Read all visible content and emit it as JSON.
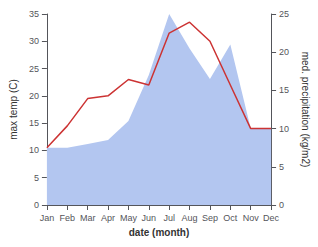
{
  "chart_data": {
    "type": "line",
    "categories": [
      "Jan",
      "Feb",
      "Mar",
      "Apr",
      "May",
      "Jun",
      "Jul",
      "Aug",
      "Sep",
      "Oct",
      "Nov",
      "Dec"
    ],
    "series": [
      {
        "type": "area",
        "axis": "y2",
        "color": "#b3c6f0",
        "values": [
          7.5,
          7.5,
          8.0,
          8.5,
          11.0,
          17.0,
          25.0,
          20.5,
          16.5,
          21.0,
          10.0,
          10.0
        ]
      },
      {
        "type": "line",
        "color": "#cc3333",
        "values": [
          10.5,
          14.5,
          19.5,
          20.0,
          23.0,
          22.0,
          31.5,
          33.5,
          30.0,
          22.0,
          14.0,
          14.0
        ]
      }
    ],
    "xlabel": "date (month)",
    "ylabel": "max temp (C)",
    "y2label": "med. precipitation (kg/m2)",
    "ylim": [
      0,
      35
    ],
    "yticks": [
      0,
      5,
      10,
      15,
      20,
      25,
      30,
      35
    ],
    "y2lim": [
      0,
      25
    ],
    "y2ticks": [
      0,
      5,
      10,
      15,
      20,
      25
    ],
    "grid": false
  }
}
